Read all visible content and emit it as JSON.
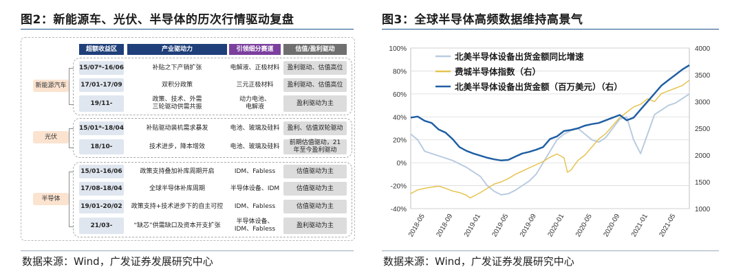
{
  "left": {
    "title": "图2：新能源车、光伏、半导体的历次行情驱动复盘",
    "source": "数据来源：Wind，广发证券发展研究中心",
    "headers": {
      "period": "超额收益区",
      "logic": "产业驱动力",
      "segment": "引领细分赛道",
      "driver": "估值/盈利驱动"
    },
    "colors": {
      "period": "#1f3f7a",
      "logic": "#1f3f7a",
      "segment": "#7b3f9e",
      "driver": "#6f6f6f"
    },
    "sections": [
      {
        "name": "新能源汽车",
        "rows": [
          {
            "period": "15/07*-16/06",
            "logic": "补贴之下产销扩张",
            "segment": "电解液、正极材料",
            "driver": "盈利驱动、估值高位"
          },
          {
            "period": "17/01-17/09",
            "logic": "双积分政策",
            "segment": "三元正极材料",
            "driver": "盈利驱动、估值高位"
          },
          {
            "period": "19/11-",
            "logic": "政策、技术、外需\n三轮驱动供需共振",
            "segment": "动力电池、\n电解液",
            "driver": "盈利驱动为主"
          }
        ]
      },
      {
        "name": "光伏",
        "rows": [
          {
            "period": "15/01*-18/04",
            "logic": "补贴驱动装机需求暴发",
            "segment": "电池、玻璃及硅料",
            "driver": "盈利、估值双轮驱动"
          },
          {
            "period": "18/10-",
            "logic": "技术进步，降本增效",
            "segment": "电池、玻璃及硅料",
            "driver": "前期估值驱动，21\n年至今盈利驱动"
          }
        ]
      },
      {
        "name": "半导体",
        "rows": [
          {
            "period": "15/01-16/06",
            "logic": "政策支持叠加补库周期开启",
            "segment": "IDM、Fabless",
            "driver": "估值驱动为主"
          },
          {
            "period": "17/08-18/04",
            "logic": "全球半导体补库周期",
            "segment": "半导体设备、IDM",
            "driver": "估值驱动为主"
          },
          {
            "period": "19/01-20/02",
            "logic": "政策支持+技术进步下的自主可控",
            "segment": "IDM、Fabless",
            "driver": "估值驱动为主"
          },
          {
            "period": "21/03-",
            "logic": "“缺芯”供需缺口及资本开支扩张",
            "segment": "半导体设备、\nIDM、Fabless",
            "driver": "盈利驱动为主"
          }
        ]
      }
    ]
  },
  "right": {
    "title": "图3：全球半导体高频数据维持高景气",
    "source": "数据来源：Wind，广发证券发展研究中心"
  },
  "chart_data": {
    "type": "line",
    "x": [
      "2018-05",
      "2018-09",
      "2019-01",
      "2019-05",
      "2019-09",
      "2020-01",
      "2020-05",
      "2020-09",
      "2021-01",
      "2021-05"
    ],
    "left_axis": {
      "ticks": [
        "100%",
        "80%",
        "60%",
        "40%",
        "20%",
        "0%",
        "-20%",
        "-40%"
      ],
      "ylim": [
        -0.4,
        1.0
      ]
    },
    "right_axis": {
      "ticks": [
        "4000",
        "3500",
        "3000",
        "2500",
        "2000",
        "1500",
        "1000"
      ],
      "ylim": [
        1000,
        4000
      ]
    },
    "grid": true,
    "legend_position": "top-left",
    "series": [
      {
        "name": "北美半导体设备出货金额同比增速",
        "axis": "left",
        "color": "#b9cbe0",
        "width": 2,
        "points": [
          [
            0,
            0.25
          ],
          [
            1,
            0.2
          ],
          [
            2,
            0.1
          ],
          [
            4,
            0.06
          ],
          [
            6,
            0.02
          ],
          [
            8,
            -0.04
          ],
          [
            10,
            -0.12
          ],
          [
            11,
            -0.2
          ],
          [
            12,
            -0.25
          ],
          [
            13,
            -0.28
          ],
          [
            14,
            -0.27
          ],
          [
            15,
            -0.24
          ],
          [
            16,
            -0.2
          ],
          [
            17,
            -0.16
          ],
          [
            18,
            -0.1
          ],
          [
            19,
            0.0
          ],
          [
            20,
            0.1
          ],
          [
            21,
            0.2
          ],
          [
            22,
            0.25
          ],
          [
            23,
            0.28
          ],
          [
            24,
            0.3
          ],
          [
            25,
            0.25
          ],
          [
            26,
            0.2
          ],
          [
            27,
            0.18
          ],
          [
            28,
            0.22
          ],
          [
            29,
            0.3
          ],
          [
            30,
            0.38
          ],
          [
            31,
            0.4
          ],
          [
            32,
            0.2
          ],
          [
            33,
            0.08
          ],
          [
            34,
            0.25
          ],
          [
            35,
            0.42
          ],
          [
            36,
            0.46
          ],
          [
            37,
            0.5
          ],
          [
            38,
            0.52
          ],
          [
            39,
            0.56
          ],
          [
            40,
            0.6
          ]
        ]
      },
      {
        "name": "费城半导体指数（右）",
        "axis": "right",
        "color": "#e5c34f",
        "width": 1.5,
        "points": [
          [
            0,
            1280
          ],
          [
            1,
            1350
          ],
          [
            2,
            1380
          ],
          [
            3,
            1400
          ],
          [
            4,
            1420
          ],
          [
            5,
            1380
          ],
          [
            6,
            1330
          ],
          [
            7,
            1300
          ],
          [
            8,
            1250
          ],
          [
            8.5,
            1200
          ],
          [
            9,
            1230
          ],
          [
            10,
            1300
          ],
          [
            11,
            1380
          ],
          [
            12,
            1460
          ],
          [
            13,
            1500
          ],
          [
            14,
            1560
          ],
          [
            15,
            1640
          ],
          [
            16,
            1700
          ],
          [
            17,
            1760
          ],
          [
            18,
            1820
          ],
          [
            19,
            1880
          ],
          [
            20,
            1960
          ],
          [
            21,
            2020
          ],
          [
            22,
            1950
          ],
          [
            22.5,
            1680
          ],
          [
            23,
            1720
          ],
          [
            24,
            1900
          ],
          [
            25,
            2000
          ],
          [
            26,
            2150
          ],
          [
            27,
            2300
          ],
          [
            28,
            2400
          ],
          [
            29,
            2550
          ],
          [
            30,
            2700
          ],
          [
            31,
            2800
          ],
          [
            32,
            2900
          ],
          [
            33,
            2950
          ],
          [
            34,
            3050
          ],
          [
            35,
            3000
          ],
          [
            36,
            3150
          ],
          [
            37,
            3200
          ],
          [
            38,
            3250
          ],
          [
            39,
            3300
          ],
          [
            40,
            3400
          ]
        ]
      },
      {
        "name": "北美半导体设备出货金额（百万美元）（右）",
        "axis": "right",
        "color": "#1f5fa3",
        "width": 2.5,
        "points": [
          [
            0,
            2700
          ],
          [
            1,
            2720
          ],
          [
            2,
            2640
          ],
          [
            3,
            2600
          ],
          [
            4,
            2480
          ],
          [
            5,
            2420
          ],
          [
            6,
            2300
          ],
          [
            7,
            2150
          ],
          [
            8,
            2080
          ],
          [
            9,
            2030
          ],
          [
            10,
            1990
          ],
          [
            11,
            1950
          ],
          [
            12,
            1920
          ],
          [
            13,
            1900
          ],
          [
            14,
            1910
          ],
          [
            15,
            1970
          ],
          [
            16,
            2030
          ],
          [
            17,
            2060
          ],
          [
            18,
            2100
          ],
          [
            19,
            2150
          ],
          [
            20,
            2300
          ],
          [
            21,
            2350
          ],
          [
            22,
            2450
          ],
          [
            23,
            2470
          ],
          [
            24,
            2500
          ],
          [
            25,
            2550
          ],
          [
            26,
            2580
          ],
          [
            27,
            2600
          ],
          [
            28,
            2650
          ],
          [
            29,
            2700
          ],
          [
            30,
            2750
          ],
          [
            31,
            2650
          ],
          [
            32,
            2700
          ],
          [
            33,
            2850
          ],
          [
            34,
            3000
          ],
          [
            35,
            3150
          ],
          [
            36,
            3300
          ],
          [
            37,
            3400
          ],
          [
            38,
            3500
          ],
          [
            39,
            3600
          ],
          [
            40,
            3680
          ]
        ]
      }
    ]
  }
}
